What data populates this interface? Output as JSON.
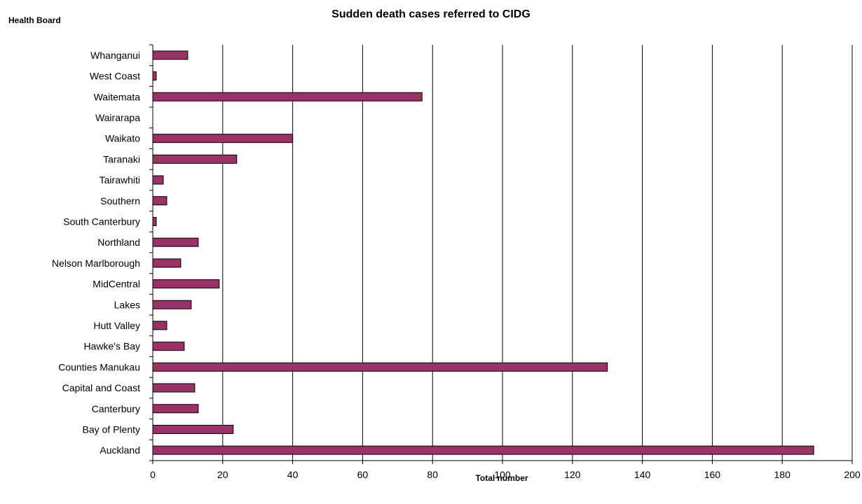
{
  "chart_data": {
    "type": "bar",
    "orientation": "horizontal",
    "title": "Sudden death cases referred to CIDG",
    "xlabel": "Total number",
    "ylabel": "Health Board",
    "xlim": [
      0,
      200
    ],
    "x_ticks": [
      0,
      20,
      40,
      60,
      80,
      100,
      120,
      140,
      160,
      180,
      200
    ],
    "grid": "vertical",
    "legend": "none",
    "bar_color": "#993366",
    "categories": [
      "Auckland",
      "Bay of Plenty",
      "Canterbury",
      "Capital and Coast",
      "Counties Manukau",
      "Hawke's Bay",
      "Hutt Valley",
      "Lakes",
      "MidCentral",
      "Nelson Marlborough",
      "Northland",
      "South Canterbury",
      "Southern",
      "Tairawhiti",
      "Taranaki",
      "Waikato",
      "Wairarapa",
      "Waitemata",
      "West Coast",
      "Whanganui"
    ],
    "values": [
      189,
      23,
      13,
      12,
      130,
      9,
      4,
      11,
      19,
      8,
      13,
      1,
      4,
      3,
      24,
      40,
      0,
      77,
      1,
      10
    ]
  }
}
